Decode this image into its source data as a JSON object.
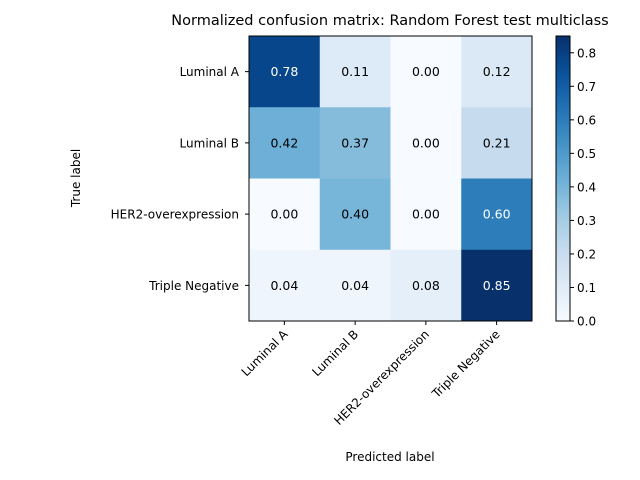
{
  "chart_data": {
    "type": "heatmap",
    "title": "Normalized confusion matrix: Random Forest test multiclass",
    "xlabel": "Predicted label",
    "ylabel": "True label",
    "x_categories": [
      "Luminal A",
      "Luminal B",
      "HER2-overexpression",
      "Triple Negative"
    ],
    "y_categories": [
      "Luminal A",
      "Luminal B",
      "HER2-overexpression",
      "Triple Negative"
    ],
    "values": [
      [
        0.78,
        0.11,
        0.0,
        0.12
      ],
      [
        0.42,
        0.37,
        0.0,
        0.21
      ],
      [
        0.0,
        0.4,
        0.0,
        0.6
      ],
      [
        0.04,
        0.04,
        0.08,
        0.85
      ]
    ],
    "cell_labels": [
      [
        "0.78",
        "0.11",
        "0.00",
        "0.12"
      ],
      [
        "0.42",
        "0.37",
        "0.00",
        "0.21"
      ],
      [
        "0.00",
        "0.40",
        "0.00",
        "0.60"
      ],
      [
        "0.04",
        "0.04",
        "0.08",
        "0.85"
      ]
    ],
    "colormap": "Blues",
    "colorbar": {
      "min": 0.0,
      "max": 0.85,
      "ticks": [
        0.0,
        0.1,
        0.2,
        0.3,
        0.4,
        0.5,
        0.6,
        0.7,
        0.8
      ],
      "tick_labels": [
        "0.0",
        "0.1",
        "0.2",
        "0.3",
        "0.4",
        "0.5",
        "0.6",
        "0.7",
        "0.8"
      ]
    },
    "grid": false
  }
}
